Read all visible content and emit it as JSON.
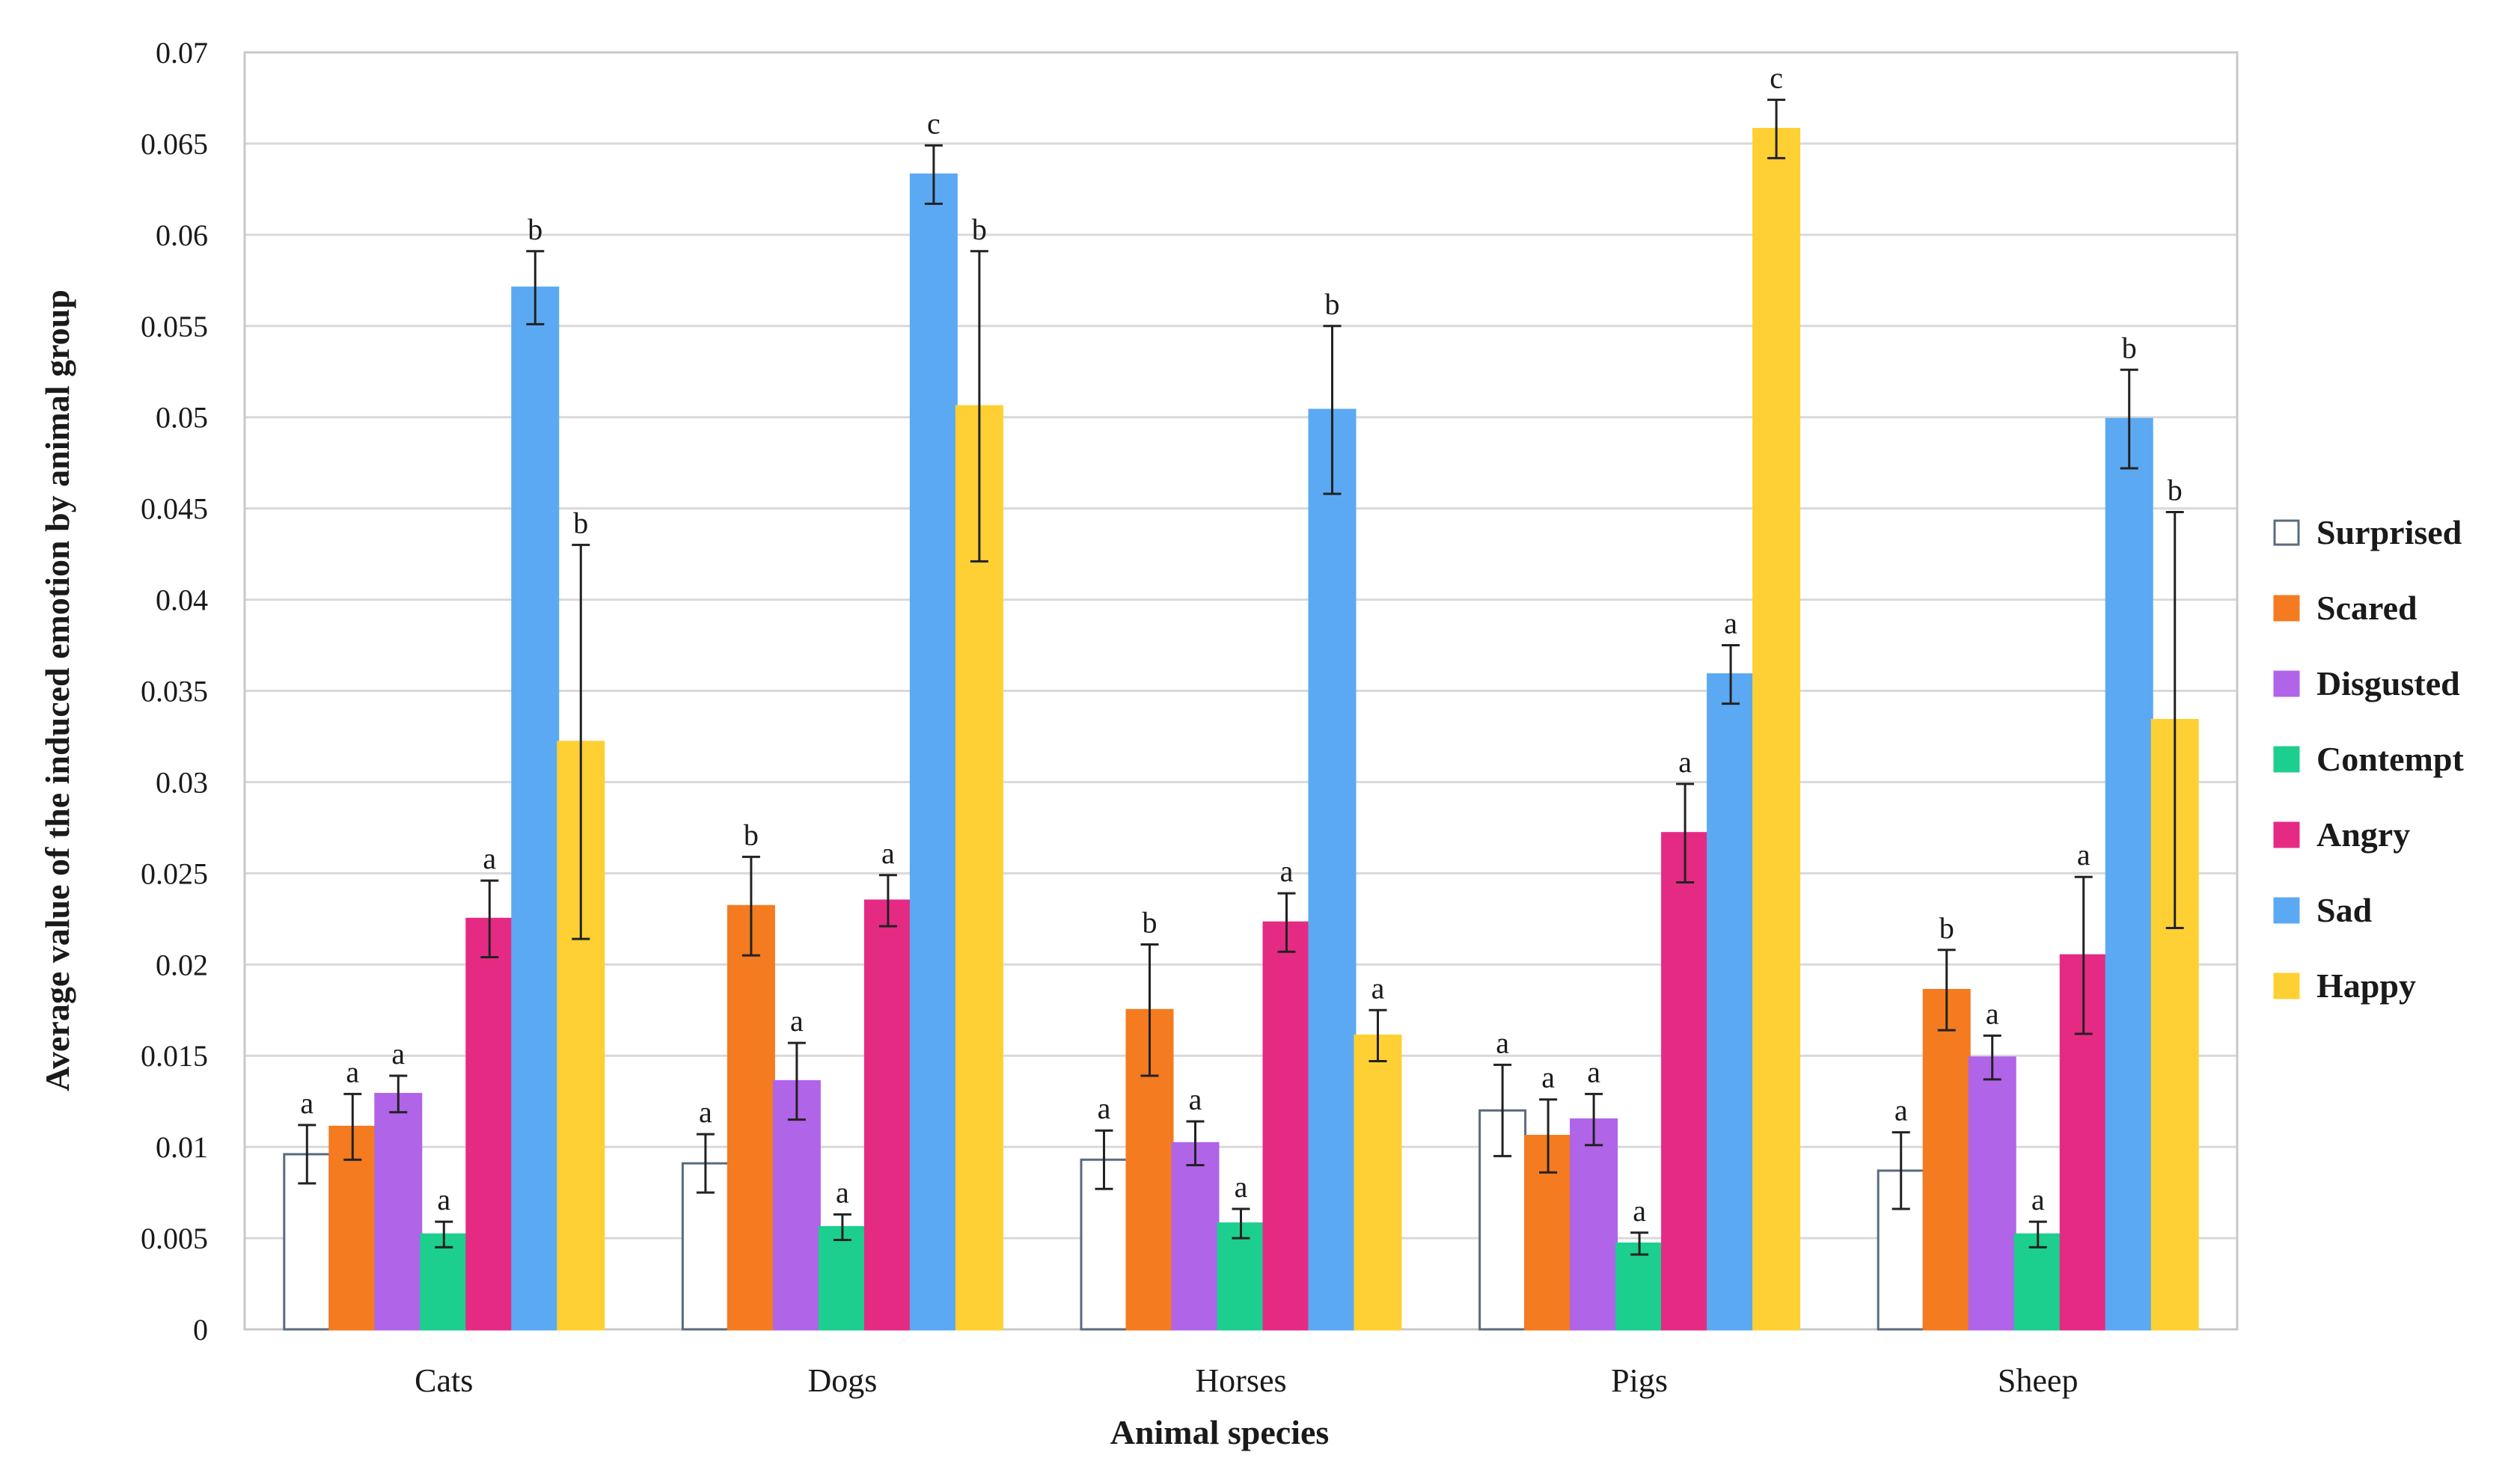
{
  "chart_data": {
    "type": "bar",
    "title": "",
    "xlabel": "Animal species",
    "ylabel": "Average value of the induced emotion by animal group",
    "ylim": [
      0,
      0.07
    ],
    "yticks": [
      0,
      0.005,
      0.01,
      0.015,
      0.02,
      0.025,
      0.03,
      0.035,
      0.04,
      0.045,
      0.05,
      0.055,
      0.06,
      0.065,
      0.07
    ],
    "ytick_labels": [
      "0",
      "0.005",
      "0.01",
      "0.015",
      "0.02",
      "0.025",
      "0.03",
      "0.035",
      "0.04",
      "0.045",
      "0.05",
      "0.055",
      "0.06",
      "0.065",
      "0.07"
    ],
    "grid": true,
    "legend_position": "right",
    "categories": [
      "Cats",
      "Dogs",
      "Horses",
      "Pigs",
      "Sheep"
    ],
    "series": [
      {
        "name": "Surprised",
        "color": "#ffffff",
        "stroke": "#5b6b7e",
        "values": [
          0.0096,
          0.0091,
          0.0093,
          0.012,
          0.0087
        ],
        "errors": [
          0.0016,
          0.0016,
          0.0016,
          0.0025,
          0.0021
        ],
        "labels": [
          "a",
          "a",
          "a",
          "a",
          "a"
        ]
      },
      {
        "name": "Scared",
        "color": "#f47b20",
        "stroke": "#f47b20",
        "values": [
          0.0111,
          0.0232,
          0.0175,
          0.0106,
          0.0186
        ],
        "errors": [
          0.0018,
          0.0027,
          0.0036,
          0.002,
          0.0022
        ],
        "labels": [
          "a",
          "b",
          "b",
          "a",
          "b"
        ]
      },
      {
        "name": "Disgusted",
        "color": "#b064e8",
        "stroke": "#b064e8",
        "values": [
          0.0129,
          0.0136,
          0.0102,
          0.0115,
          0.0149
        ],
        "errors": [
          0.001,
          0.0021,
          0.0012,
          0.0014,
          0.0012
        ],
        "labels": [
          "a",
          "a",
          "a",
          "a",
          "a"
        ]
      },
      {
        "name": "Contempt",
        "color": "#1ccf8f",
        "stroke": "#1ccf8f",
        "values": [
          0.0052,
          0.0056,
          0.0058,
          0.0047,
          0.0052
        ],
        "errors": [
          0.0007,
          0.0007,
          0.0008,
          0.0006,
          0.0007
        ],
        "labels": [
          "a",
          "a",
          "a",
          "a",
          "a"
        ]
      },
      {
        "name": "Angry",
        "color": "#e52a84",
        "stroke": "#e52a84",
        "values": [
          0.0225,
          0.0235,
          0.0223,
          0.0272,
          0.0205
        ],
        "errors": [
          0.0021,
          0.0014,
          0.0016,
          0.0027,
          0.0043
        ],
        "labels": [
          "a",
          "a",
          "a",
          "a",
          "a"
        ]
      },
      {
        "name": "Sad",
        "color": "#5ba9f3",
        "stroke": "#5ba9f3",
        "values": [
          0.0571,
          0.0633,
          0.0504,
          0.0359,
          0.0499
        ],
        "errors": [
          0.002,
          0.0016,
          0.0046,
          0.0016,
          0.0027
        ],
        "labels": [
          "b",
          "c",
          "b",
          "a",
          "b"
        ]
      },
      {
        "name": "Happy",
        "color": "#ffd033",
        "stroke": "#ffd033",
        "values": [
          0.0322,
          0.0506,
          0.0161,
          0.0658,
          0.0334
        ],
        "errors": [
          0.0108,
          0.0085,
          0.0014,
          0.0016,
          0.0114
        ],
        "labels": [
          "b",
          "b",
          "a",
          "c",
          "b"
        ]
      }
    ]
  }
}
